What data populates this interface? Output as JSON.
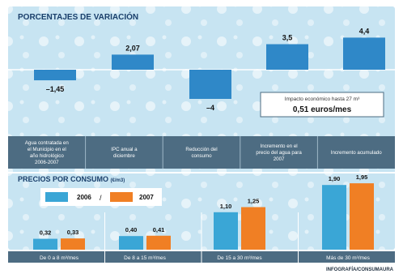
{
  "credit": "INFOGRAFÍA/CONSUMAURA",
  "colors": {
    "bar_top": "#2f88c8",
    "bar_2006": "#3aa6d6",
    "bar_2007": "#f07f24",
    "panel": "#c7e4f2",
    "caption_bg": "#4d6c82",
    "header_text": "#1a3f6b"
  },
  "chart_data": [
    {
      "type": "bar",
      "title": "PORCENTAJES DE VARIACIÓN",
      "categories": [
        "Agua contratada en el Municipio en el año hidrológico 2006-2007",
        "IPC anual a diciembre",
        "Reducción del consumo",
        "Incremento en el precio del agua para 2007",
        "Incremento acumulado"
      ],
      "values": [
        -1.45,
        2.07,
        -4,
        3.5,
        4.4
      ],
      "value_labels": [
        "–1,45",
        "2,07",
        "–4",
        "3,5",
        "4,4"
      ],
      "annotation": {
        "line1": "Impacto económico hasta 27 m³",
        "line2": "0,51 euros/mes"
      }
    },
    {
      "type": "bar",
      "title": "PRECIOS POR CONSUMO",
      "title_unit": "(€/m3)",
      "categories": [
        "De 0 a 8 m³/mes",
        "De 8 a 15 m³/mes",
        "De 15 a 30 m³/mes",
        "Más de 30 m³/mes"
      ],
      "series": [
        {
          "name": "2006",
          "values": [
            0.32,
            0.4,
            1.1,
            1.9
          ],
          "value_labels": [
            "0,32",
            "0,40",
            "1,10",
            "1,90"
          ]
        },
        {
          "name": "2007",
          "values": [
            0.33,
            0.41,
            1.25,
            1.95
          ],
          "value_labels": [
            "0,33",
            "0,41",
            "1,25",
            "1,95"
          ]
        }
      ],
      "legend_separator": "/",
      "legend": "top-left"
    }
  ]
}
